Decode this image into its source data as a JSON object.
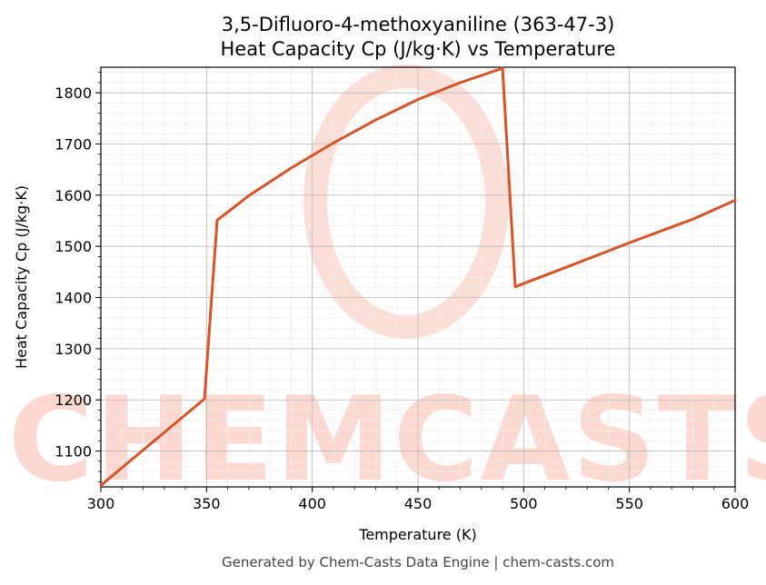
{
  "chart_data": {
    "type": "line",
    "title_line1": "3,5-Difluoro-4-methoxyaniline (363-47-3)",
    "title_line2": "Heat Capacity Cp (J/kg·K) vs Temperature",
    "xlabel": "Temperature (K)",
    "ylabel": "Heat Capacity Cp (J/kg·K)",
    "xlim": [
      300,
      600
    ],
    "ylim": [
      1030,
      1850
    ],
    "xticks": [
      300,
      350,
      400,
      450,
      500,
      550,
      600
    ],
    "yticks": [
      1100,
      1200,
      1300,
      1400,
      1500,
      1600,
      1700,
      1800
    ],
    "grid": true,
    "series": [
      {
        "color": "#d4552a",
        "x": [
          300,
          349,
          355,
          370,
          390,
          410,
          430,
          450,
          470,
          490,
          496,
          520,
          550,
          580,
          600
        ],
        "y": [
          1033,
          1202,
          1551,
          1599,
          1653,
          1702,
          1747,
          1787,
          1820,
          1848,
          1421,
          1459,
          1507,
          1553,
          1590
        ]
      }
    ]
  },
  "watermark": {
    "text": "CHEMCASTS",
    "color": "#fdd8d0"
  },
  "footer": "Generated by Chem-Casts Data Engine | chem-casts.com"
}
